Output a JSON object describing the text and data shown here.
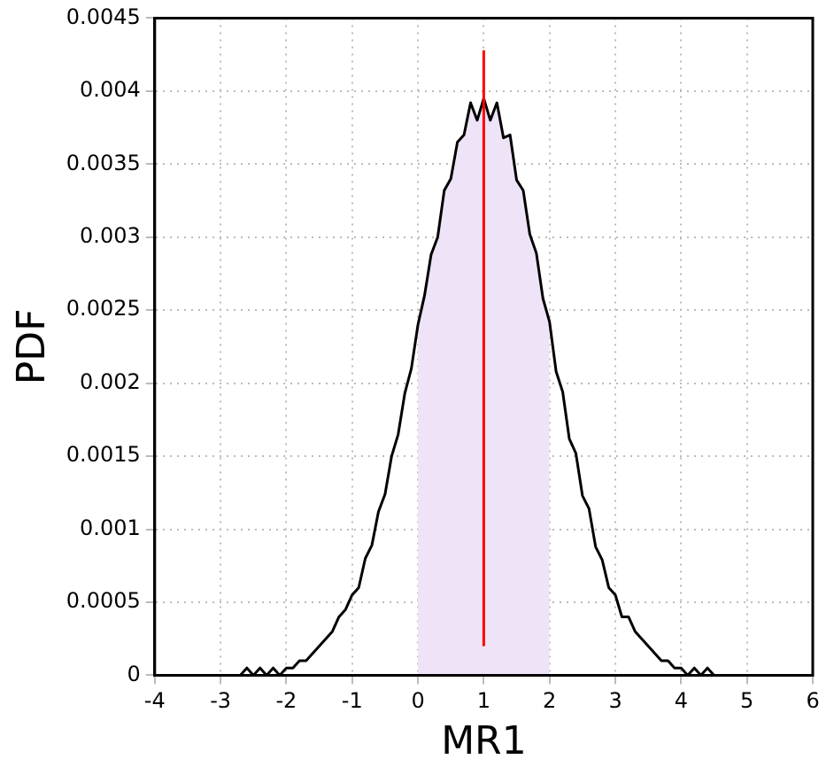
{
  "chart_data": {
    "type": "line",
    "xlabel": "MR1",
    "ylabel": "PDF",
    "xlim": [
      -4,
      6
    ],
    "xticks": [
      -4,
      -3,
      -2,
      -1,
      0,
      1,
      2,
      3,
      4,
      5,
      6
    ],
    "ylim": [
      0,
      0.0045
    ],
    "yticks": [
      0,
      0.0005,
      0.001,
      0.0015,
      0.002,
      0.0025,
      0.003,
      0.0035,
      0.004,
      0.0045
    ],
    "grid": true,
    "line_style": "solid",
    "marker": "none",
    "series": [
      {
        "type": "area",
        "color": "#efe3f7",
        "x": [
          0,
          0.1,
          0.2,
          0.3,
          0.4,
          0.5,
          0.6,
          0.7,
          0.8,
          0.9,
          1,
          1.1,
          1.2,
          1.3,
          1.4,
          1.5,
          1.6,
          1.7,
          1.8,
          1.9,
          2
        ],
        "values": [
          0.0024,
          0.0026,
          0.00288,
          0.003,
          0.00332,
          0.0034,
          0.00365,
          0.0037,
          0.00392,
          0.0038,
          0.00395,
          0.0038,
          0.00392,
          0.00368,
          0.0037,
          0.00339,
          0.00332,
          0.00302,
          0.00289,
          0.00258,
          0.00242
        ]
      },
      {
        "type": "line",
        "color": "#000000",
        "x": [
          -3,
          -2.9,
          -2.8,
          -2.7,
          -2.6,
          -2.5,
          -2.4,
          -2.3,
          -2.2,
          -2.1,
          -2,
          -1.9,
          -1.8,
          -1.7,
          -1.6,
          -1.5,
          -1.4,
          -1.3,
          -1.2,
          -1.1,
          -1,
          -0.9,
          -0.8,
          -0.7,
          -0.6,
          -0.5,
          -0.4,
          -0.3,
          -0.2,
          -0.1,
          0,
          0.1,
          0.2,
          0.3,
          0.4,
          0.5,
          0.6,
          0.7,
          0.8,
          0.9,
          1,
          1.1,
          1.2,
          1.3,
          1.4,
          1.5,
          1.6,
          1.7,
          1.8,
          1.9,
          2,
          2.1,
          2.2,
          2.3,
          2.4,
          2.5,
          2.6,
          2.7,
          2.8,
          2.9,
          3,
          3.1,
          3.2,
          3.3,
          3.4,
          3.5,
          3.6,
          3.7,
          3.8,
          3.9,
          4,
          4.1,
          4.2,
          4.3,
          4.4,
          4.5,
          4.6,
          4.7,
          4.8,
          4.9,
          5
        ],
        "values": [
          0,
          0,
          0,
          0,
          5e-05,
          0,
          5e-05,
          0,
          5e-05,
          0,
          5e-05,
          5e-05,
          0.0001,
          0.0001,
          0.00015,
          0.0002,
          0.00025,
          0.0003,
          0.0004,
          0.00045,
          0.00055,
          0.0006,
          0.0008,
          0.00089,
          0.00112,
          0.00124,
          0.0015,
          0.00165,
          0.00193,
          0.0021,
          0.0024,
          0.0026,
          0.00288,
          0.003,
          0.00332,
          0.0034,
          0.00365,
          0.0037,
          0.00392,
          0.0038,
          0.00395,
          0.0038,
          0.00392,
          0.00368,
          0.0037,
          0.00339,
          0.00332,
          0.00302,
          0.00289,
          0.00258,
          0.00242,
          0.00208,
          0.00194,
          0.00162,
          0.00152,
          0.00123,
          0.00114,
          0.00088,
          0.00079,
          0.0006,
          0.00055,
          0.0004,
          0.0004,
          0.0003,
          0.00025,
          0.0002,
          0.00015,
          0.0001,
          0.0001,
          5e-05,
          5e-05,
          0,
          5e-05,
          0,
          5e-05,
          0,
          0,
          0,
          0,
          0,
          0
        ]
      },
      {
        "type": "line",
        "color": "#ff0000",
        "x": [
          1,
          1
        ],
        "values": [
          0.0002,
          0.00428
        ]
      }
    ]
  }
}
